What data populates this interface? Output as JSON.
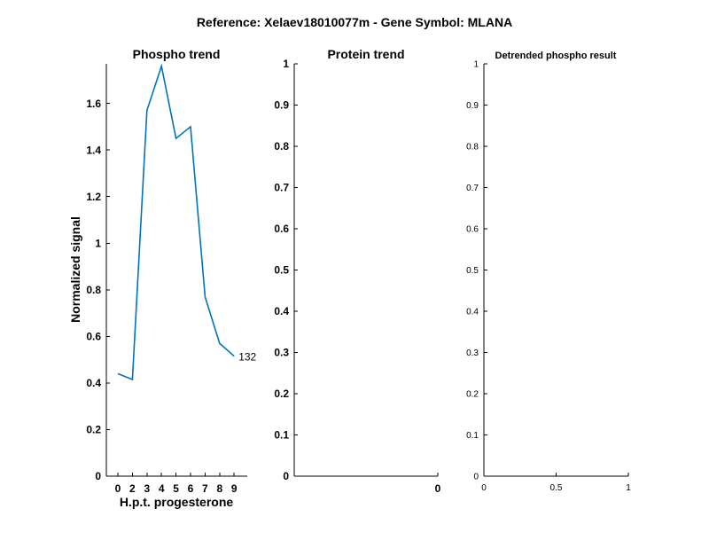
{
  "figure": {
    "suptitle": "Reference:  Xelaev18010077m - Gene Symbol:  MLANA"
  },
  "colors": {
    "series": "#0072BD",
    "axis": "#000000",
    "background": "#ffffff"
  },
  "chart_data": [
    {
      "type": "line",
      "title": "Phospho trend",
      "xlabel": "H.p.t. progesterone",
      "ylabel": "Normalized signal",
      "x_tick_labels": [
        "0",
        "2",
        "3",
        "4",
        "5",
        "6",
        "7",
        "8",
        "9"
      ],
      "y_tick_labels": [
        "0",
        "0.2",
        "0.4",
        "0.6",
        "0.8",
        "1",
        "1.2",
        "1.4",
        "1.6"
      ],
      "y_ticks": [
        0,
        0.2,
        0.4,
        0.6,
        0.8,
        1,
        1.2,
        1.4,
        1.6
      ],
      "ylim": [
        0,
        1.77
      ],
      "series": [
        {
          "values": [
            0.44,
            0.415,
            1.57,
            1.76,
            1.45,
            1.5,
            0.77,
            0.57,
            0.515
          ],
          "end_label": "132"
        }
      ],
      "grid": false
    },
    {
      "type": "line",
      "title": "Protein trend",
      "xlabel": "",
      "ylabel": "",
      "x_tick_labels": [
        "0"
      ],
      "y_tick_labels": [
        "0",
        "0.1",
        "0.2",
        "0.3",
        "0.4",
        "0.5",
        "0.6",
        "0.7",
        "0.8",
        "0.9",
        "1"
      ],
      "y_ticks": [
        0,
        0.1,
        0.2,
        0.3,
        0.4,
        0.5,
        0.6,
        0.7,
        0.8,
        0.9,
        1
      ],
      "ylim": [
        0,
        1
      ],
      "series": [],
      "grid": false
    },
    {
      "type": "line",
      "title": "Detrended phospho result",
      "xlabel": "",
      "ylabel": "",
      "x_tick_labels": [
        "0",
        "0.5",
        "1"
      ],
      "x_ticks": [
        0,
        0.5,
        1
      ],
      "xlim": [
        0,
        1
      ],
      "y_tick_labels": [
        "0",
        "0.1",
        "0.2",
        "0.3",
        "0.4",
        "0.5",
        "0.6",
        "0.7",
        "0.8",
        "0.9",
        "1"
      ],
      "y_ticks": [
        0,
        0.1,
        0.2,
        0.3,
        0.4,
        0.5,
        0.6,
        0.7,
        0.8,
        0.9,
        1
      ],
      "ylim": [
        0,
        1
      ],
      "series": [],
      "grid": false
    }
  ]
}
